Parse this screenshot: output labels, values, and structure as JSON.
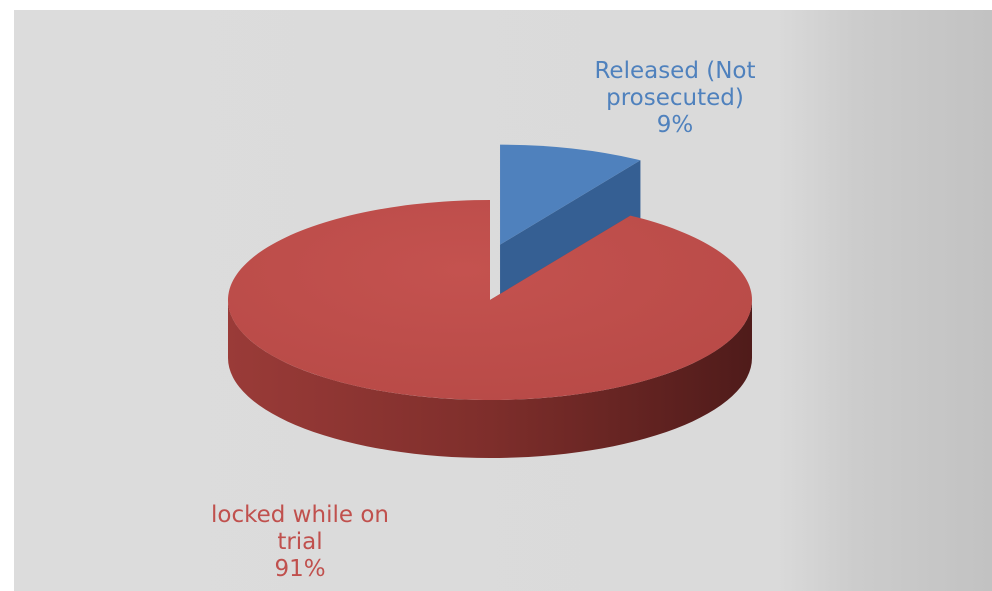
{
  "chart_data": {
    "type": "pie",
    "title": "",
    "three_d": true,
    "series": [
      {
        "categories": [
          "Released (Not prosecuted)",
          "locked while on trial"
        ],
        "values": [
          9,
          91
        ],
        "colors": [
          "#4f81bd",
          "#c0504d"
        ],
        "exploded": [
          true,
          false
        ]
      }
    ],
    "data_labels": [
      {
        "lines": [
          "Released (Not",
          "prosecuted)",
          "9%"
        ],
        "color": "#4f81bd"
      },
      {
        "lines": [
          "locked while on",
          "trial",
          "91%"
        ],
        "color": "#c0504d"
      }
    ],
    "legend": "none"
  }
}
